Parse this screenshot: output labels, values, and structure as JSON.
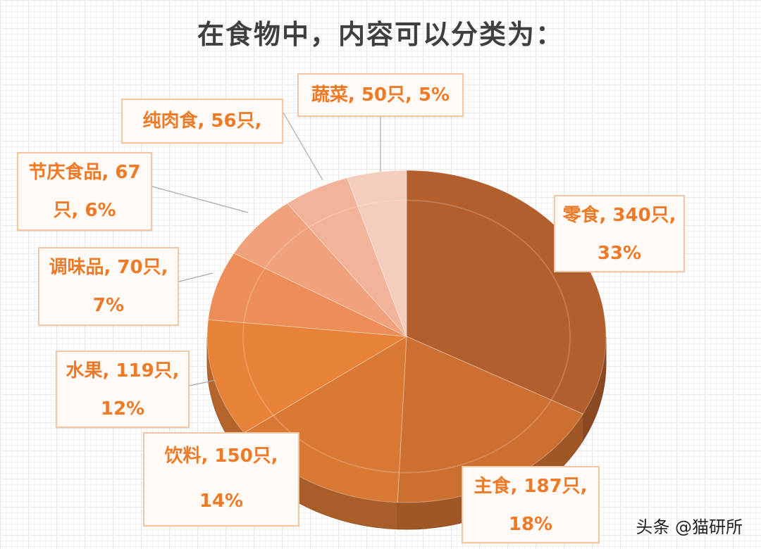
{
  "title": "在食物中，内容可以分类为：",
  "watermark": "头条 @猫研所",
  "chart_data": {
    "type": "pie",
    "title": "在食物中，内容可以分类为：",
    "slices": [
      {
        "name": "零食",
        "value": 340,
        "percent": 33,
        "label_lines": [
          "零食, 340只,",
          "33%"
        ],
        "color": "#b25e2d"
      },
      {
        "name": "主食",
        "value": 187,
        "percent": 18,
        "label_lines": [
          "主食, 187只,",
          "18%"
        ],
        "color": "#cc6f31"
      },
      {
        "name": "饮料",
        "value": 150,
        "percent": 14,
        "label_lines": [
          "饮料, 150只,",
          "14%"
        ],
        "color": "#d97934"
      },
      {
        "name": "水果",
        "value": 119,
        "percent": 12,
        "label_lines": [
          "水果, 119只,",
          "12%"
        ],
        "color": "#e88238"
      },
      {
        "name": "调味品",
        "value": 70,
        "percent": 7,
        "label_lines": [
          "调味品, 70只,",
          "7%"
        ],
        "color": "#ed8e58"
      },
      {
        "name": "节庆食品",
        "value": 67,
        "percent": 6,
        "label_lines": [
          "节庆食品, 67",
          "只, 6%"
        ],
        "color": "#efa27c"
      },
      {
        "name": "纯肉食",
        "value": 56,
        "percent": null,
        "label_lines": [
          "纯肉食, 56只,"
        ],
        "color": "#f1b49a"
      },
      {
        "name": "蔬菜",
        "value": 50,
        "percent": 5,
        "label_lines": [
          "蔬菜, 50只, 5%"
        ],
        "color": "#f4cdbf"
      }
    ]
  }
}
